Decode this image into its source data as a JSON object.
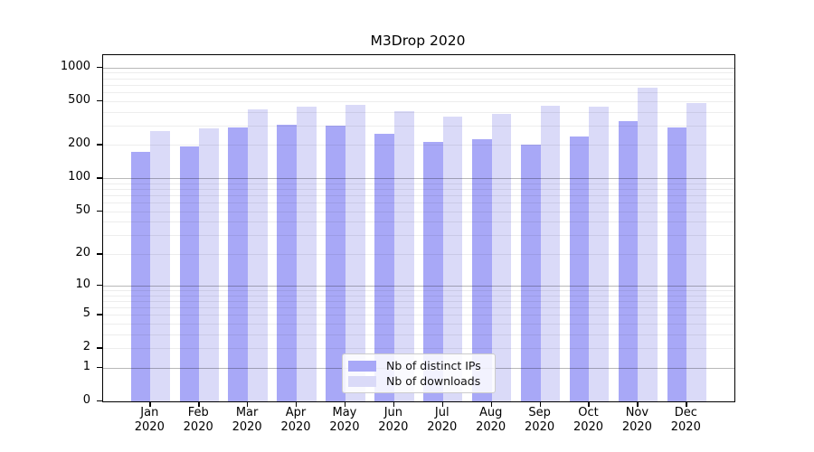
{
  "chart_data": {
    "type": "bar",
    "title": "M3Drop 2020",
    "x": [
      "Jan",
      "Feb",
      "Mar",
      "Apr",
      "May",
      "Jun",
      "Jul",
      "Aug",
      "Sep",
      "Oct",
      "Nov",
      "Dec"
    ],
    "x_year": "2020",
    "series": [
      {
        "name": "Nb of distinct IPs",
        "color": "#a8a8f7",
        "values": [
          173,
          195,
          290,
          305,
          300,
          255,
          215,
          225,
          200,
          240,
          330,
          290
        ]
      },
      {
        "name": "Nb of downloads",
        "color": "#dadaf8",
        "values": [
          268,
          285,
          420,
          440,
          460,
          405,
          360,
          385,
          455,
          445,
          660,
          480
        ]
      }
    ],
    "y_scale": "log1p",
    "y_ticks": [
      0,
      1,
      2,
      5,
      10,
      20,
      50,
      100,
      200,
      500,
      1000
    ],
    "y_major_gridlines": [
      1,
      10,
      100,
      1000
    ],
    "ylim": [
      0,
      1300
    ],
    "grid": true,
    "legend_position": "lower center",
    "colors": {
      "axis": "#000000",
      "major_grid": "#b8b8b8",
      "minor_grid": "#ededed"
    }
  }
}
